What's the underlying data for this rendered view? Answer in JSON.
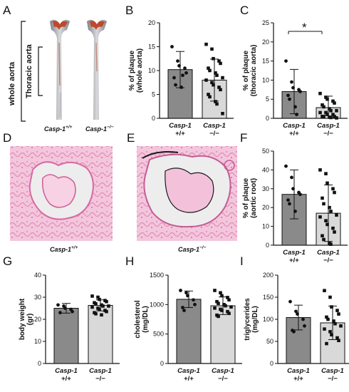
{
  "panels": {
    "A": "A",
    "B": "B",
    "C": "C",
    "D": "D",
    "E": "E",
    "F": "F",
    "G": "G",
    "H": "H",
    "I": "I"
  },
  "panel_a": {
    "whole_label": "whole aorta",
    "thoracic_label": "Thoracic aorta",
    "genotype_wt": "Casp-1",
    "genotype_wt_sup": "+/+",
    "genotype_ko": "Casp-1",
    "genotype_ko_sup": "−/−"
  },
  "panel_d": {
    "caption": "Casp-1",
    "caption_sup": "+/+"
  },
  "panel_e": {
    "caption": "Casp-1",
    "caption_sup": "−/−"
  },
  "categories": {
    "wt_line1": "Casp-1",
    "wt_line2": "+/+",
    "ko_line1": "Casp-1",
    "ko_line2": "−/−"
  },
  "significance": "*",
  "colors": {
    "wt_bar": "#8a8a8a",
    "ko_bar": "#d9d9d9",
    "point": "#111111"
  },
  "chart_data": [
    {
      "panel": "B",
      "type": "bar",
      "ylabel_line1": "% of plaque",
      "ylabel_line2": "(whole aorta)",
      "ylim": [
        0,
        20
      ],
      "yticks": [
        0,
        5,
        10,
        15,
        20
      ],
      "categories": [
        "Casp-1 +/+",
        "Casp-1 −/−"
      ],
      "values": [
        10.2,
        8.0
      ],
      "errors": [
        3.8,
        4.4
      ],
      "points": [
        [
          15.0,
          12.0,
          11.0,
          10.5,
          9.5,
          8.5,
          7.0,
          6.5,
          9.0
        ],
        [
          15.5,
          14.5,
          12.5,
          12.0,
          11.5,
          10.5,
          10.0,
          9.5,
          9.0,
          8.5,
          8.0,
          7.5,
          7.0,
          6.5,
          6.0,
          5.0,
          4.5,
          3.5,
          3.0,
          1.0
        ]
      ]
    },
    {
      "panel": "C",
      "type": "bar",
      "ylabel_line1": "% of plaque",
      "ylabel_line2": "(thoracic aorta)",
      "ylim": [
        0,
        25
      ],
      "yticks": [
        0,
        5,
        10,
        15,
        20,
        25
      ],
      "categories": [
        "Casp-1 +/+",
        "Casp-1 −/−"
      ],
      "values": [
        7.0,
        2.8
      ],
      "errors": [
        5.8,
        3.0
      ],
      "points": [
        [
          15.0,
          9.5,
          8.0,
          7.5,
          7.0,
          6.0,
          5.0,
          3.0,
          1.0
        ],
        [
          6.5,
          5.5,
          5.0,
          4.5,
          4.0,
          3.5,
          3.0,
          2.5,
          2.0,
          2.0,
          1.5,
          1.5,
          1.0,
          1.0,
          0.5,
          0.5,
          0.5,
          0.3,
          0.2,
          0.1
        ]
      ]
    },
    {
      "panel": "F",
      "type": "bar",
      "ylabel_line1": "% of plaque",
      "ylabel_line2": "(aortic root)",
      "ylim": [
        0,
        50
      ],
      "yticks": [
        0,
        10,
        20,
        30,
        40,
        50
      ],
      "categories": [
        "Casp-1 +/+",
        "Casp-1 −/−"
      ],
      "values": [
        27.0,
        17.0
      ],
      "errors": [
        13.0,
        15.0
      ],
      "points": [
        [
          42.0,
          36.0,
          30.0,
          28.0,
          27.0,
          24.0,
          22.0,
          18.0
        ],
        [
          40.0,
          38.0,
          33.0,
          30.0,
          28.0,
          25.0,
          22.0,
          20.0,
          18.0,
          16.0,
          15.0,
          13.0,
          11.0,
          9.0,
          7.0,
          5.0,
          3.0,
          1.0,
          0.5
        ]
      ]
    },
    {
      "panel": "G",
      "type": "bar",
      "ylabel_line1": "body weight",
      "ylabel_line2": "(gr)",
      "ylim": [
        0,
        40
      ],
      "yticks": [
        0,
        10,
        20,
        30,
        40
      ],
      "categories": [
        "Casp-1 +/+",
        "Casp-1 −/−"
      ],
      "values": [
        25.0,
        26.3
      ],
      "errors": [
        2.2,
        2.5
      ],
      "points": [
        [
          26.5,
          26.0,
          25.0,
          24.5,
          23.5,
          23.0
        ],
        [
          30.5,
          30.0,
          29.0,
          28.5,
          28.0,
          27.5,
          27.0,
          26.5,
          26.0,
          26.0,
          25.5,
          25.0,
          24.5,
          24.0,
          23.5,
          23.0,
          22.5,
          22.0
        ]
      ]
    },
    {
      "panel": "H",
      "type": "bar",
      "ylabel_line1": "cholesterol",
      "ylabel_line2": "(mg/DL)",
      "ylim": [
        0,
        1500
      ],
      "yticks": [
        0,
        500,
        1000,
        1500
      ],
      "categories": [
        "Casp-1 +/+",
        "Casp-1 −/−"
      ],
      "values": [
        1090,
        980
      ],
      "errors": [
        140,
        150
      ],
      "points": [
        [
          1240,
          1200,
          1150,
          1080,
          1000,
          950,
          900
        ],
        [
          1240,
          1200,
          1150,
          1120,
          1080,
          1050,
          1020,
          1000,
          980,
          960,
          940,
          920,
          900,
          880,
          850,
          820,
          800
        ]
      ]
    },
    {
      "panel": "I",
      "type": "bar",
      "ylabel_line1": "triglycerides",
      "ylabel_line2": "(mg/DL)",
      "ylim": [
        0,
        200
      ],
      "yticks": [
        0,
        50,
        100,
        150,
        200
      ],
      "categories": [
        "Casp-1 +/+",
        "Casp-1 −/−"
      ],
      "values": [
        104,
        92
      ],
      "errors": [
        28,
        38
      ],
      "points": [
        [
          140,
          118,
          112,
          100,
          85,
          75,
          72
        ],
        [
          165,
          150,
          128,
          120,
          112,
          105,
          100,
          96,
          90,
          85,
          78,
          72,
          65,
          58,
          52,
          45
        ]
      ]
    }
  ]
}
